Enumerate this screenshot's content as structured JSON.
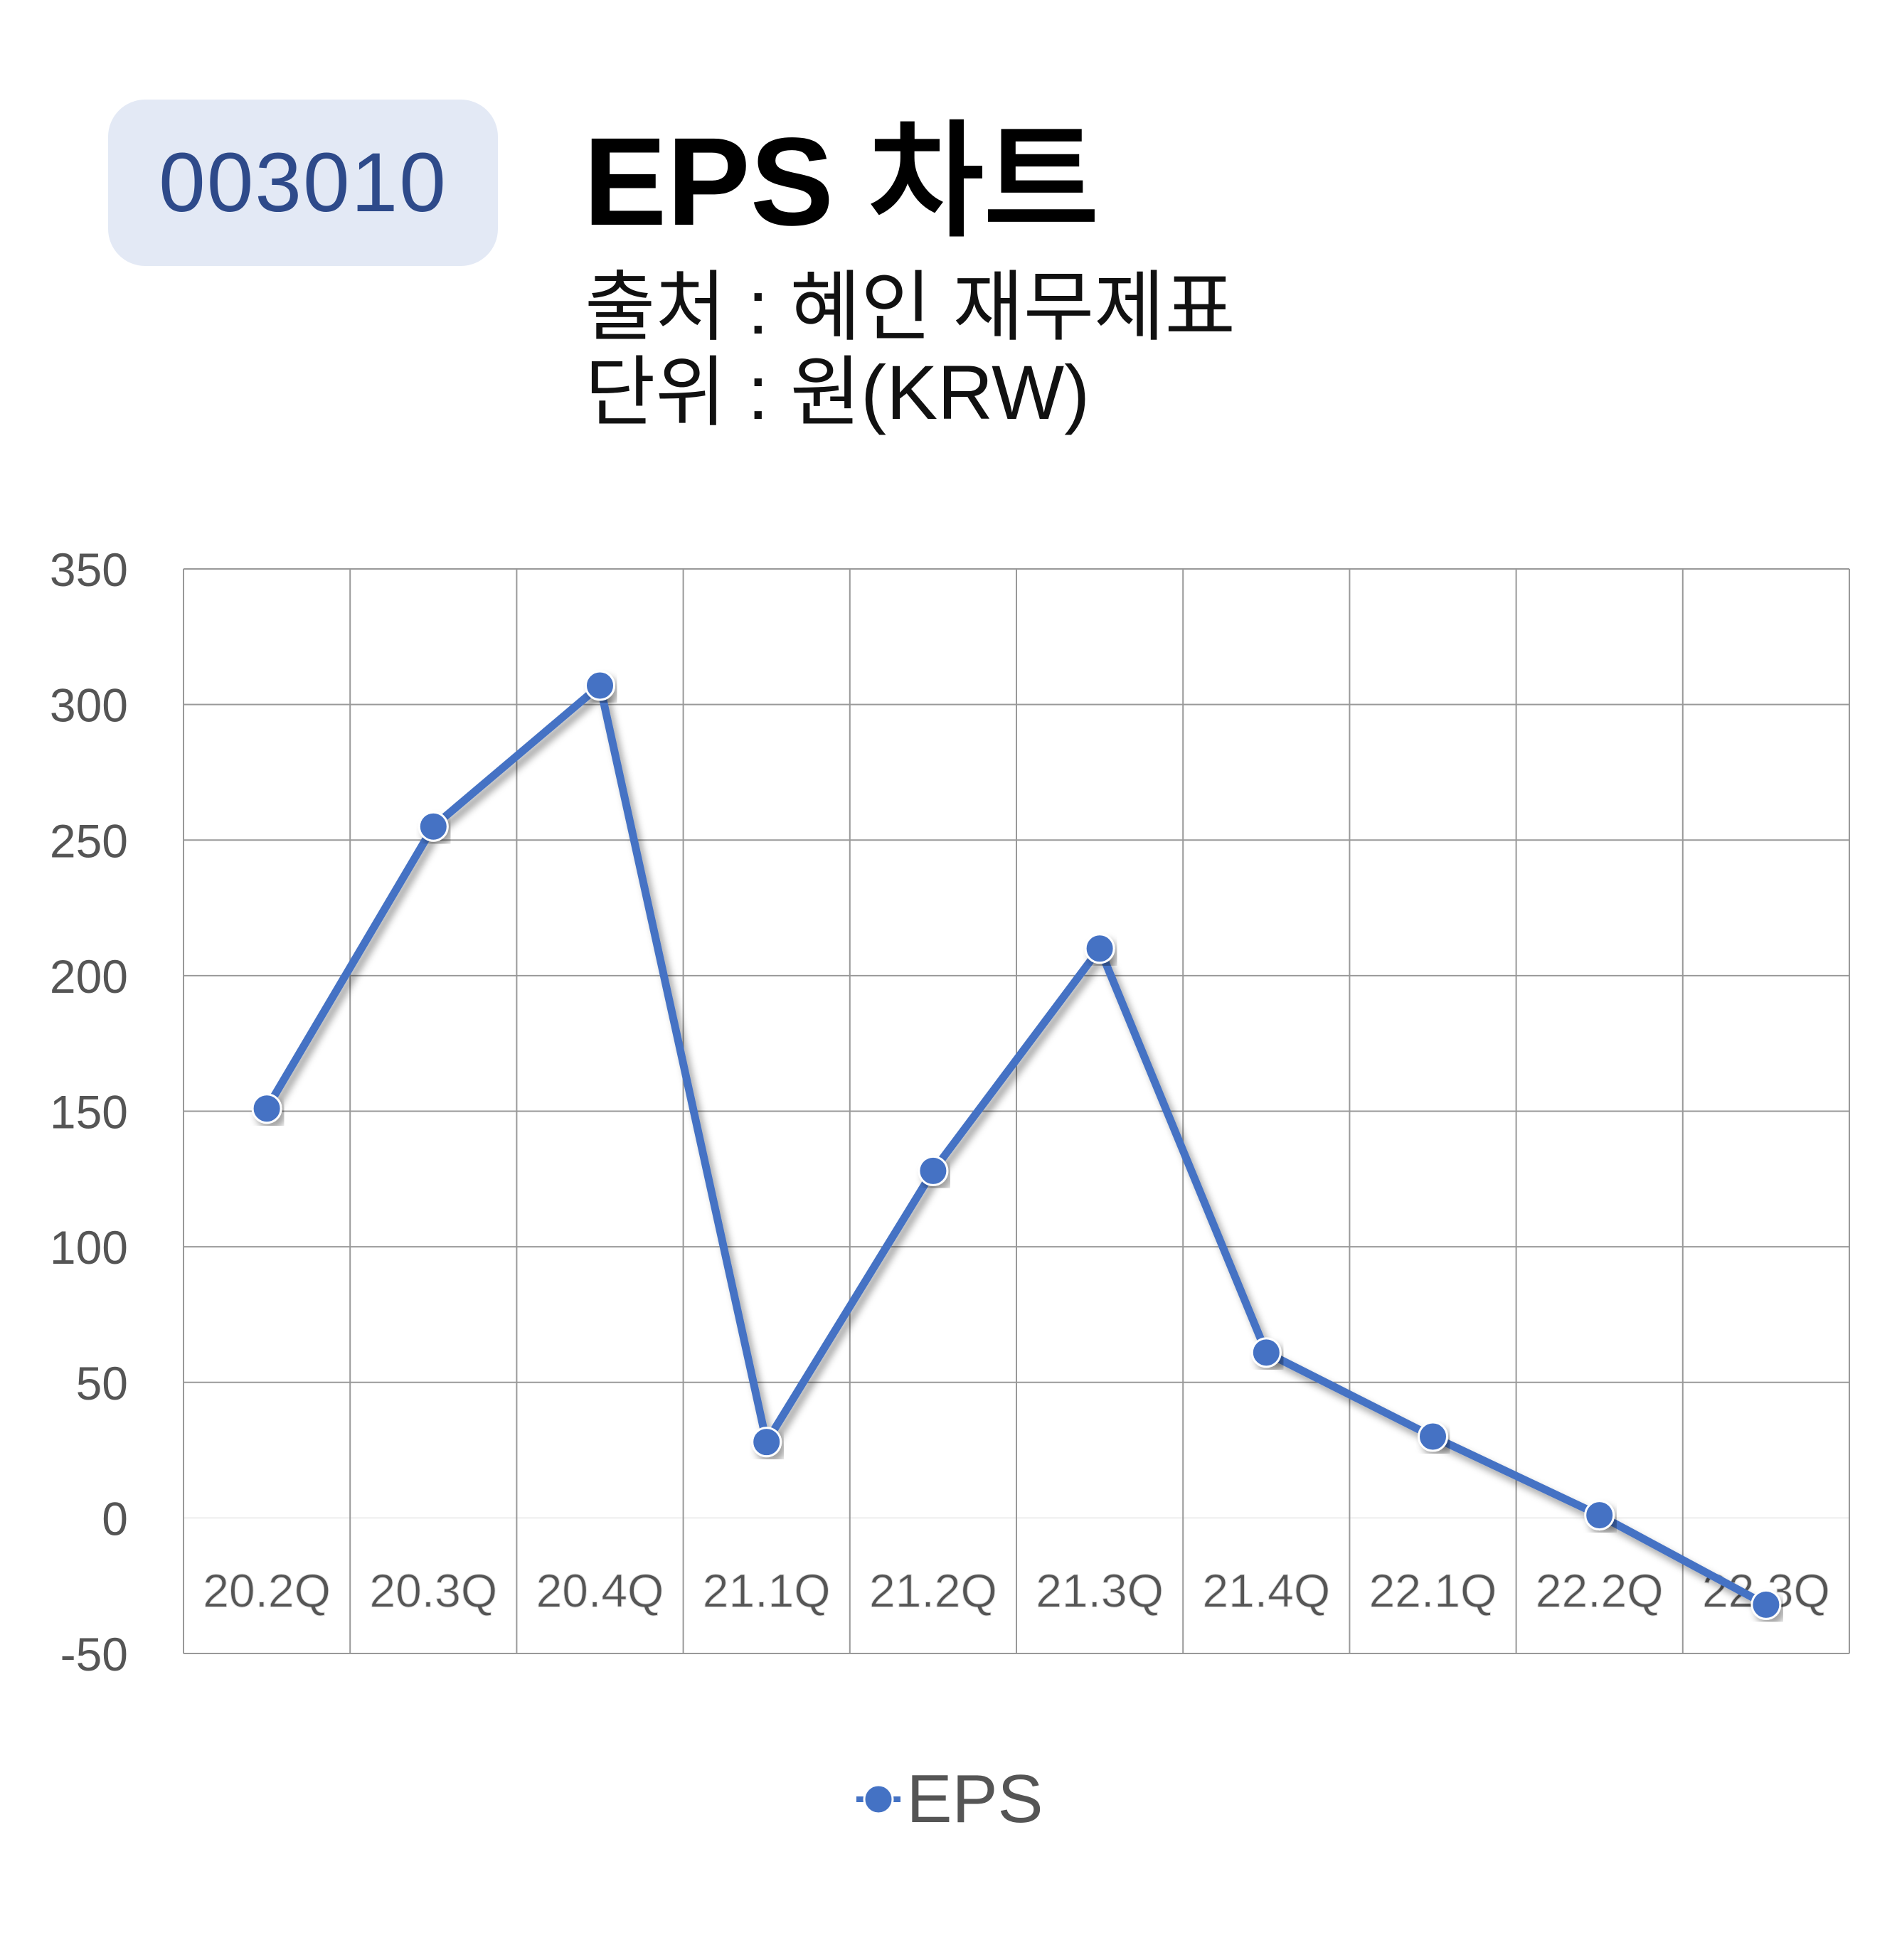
{
  "header": {
    "ticker": "003010",
    "title": "EPS 차트",
    "source": "출처 : 혜인 재무제표",
    "unit": "단위 : 원(KRW)"
  },
  "chart_data": {
    "type": "line",
    "categories": [
      "20.2Q",
      "20.3Q",
      "20.4Q",
      "21.1Q",
      "21.2Q",
      "21.3Q",
      "21.4Q",
      "22.1Q",
      "22.2Q",
      "22.3Q"
    ],
    "series": [
      {
        "name": "EPS",
        "values": [
          151,
          255,
          307,
          28,
          128,
          210,
          61,
          30,
          1,
          -32
        ],
        "color": "#4472c4"
      }
    ],
    "ylim": [
      -50,
      350
    ],
    "yticks": [
      350,
      300,
      250,
      200,
      150,
      100,
      50,
      0,
      -50
    ],
    "grid": true,
    "legend": "bottom"
  }
}
